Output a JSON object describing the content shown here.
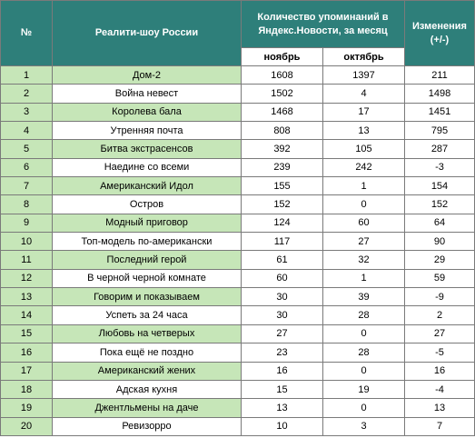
{
  "header": {
    "num": "№",
    "show": "Реалити-шоу России",
    "mentions": "Количество упоминаний в Яндекс.Новости, за месяц",
    "change": "Изменения (+/-)",
    "november": "ноябрь",
    "october": "октябрь"
  },
  "rows": [
    {
      "n": "1",
      "name": "Дом-2",
      "nov": "1608",
      "oct": "1397",
      "diff": "211"
    },
    {
      "n": "2",
      "name": "Война невест",
      "nov": "1502",
      "oct": "4",
      "diff": "1498"
    },
    {
      "n": "3",
      "name": "Королева бала",
      "nov": "1468",
      "oct": "17",
      "diff": "1451"
    },
    {
      "n": "4",
      "name": "Утренняя почта",
      "nov": "808",
      "oct": "13",
      "diff": "795"
    },
    {
      "n": "5",
      "name": "Битва экстрасенсов",
      "nov": "392",
      "oct": "105",
      "diff": "287"
    },
    {
      "n": "6",
      "name": "Наедине со всеми",
      "nov": "239",
      "oct": "242",
      "diff": "-3"
    },
    {
      "n": "7",
      "name": "Американский Идол",
      "nov": "155",
      "oct": "1",
      "diff": "154"
    },
    {
      "n": "8",
      "name": "Остров",
      "nov": "152",
      "oct": "0",
      "diff": "152"
    },
    {
      "n": "9",
      "name": "Модный приговор",
      "nov": "124",
      "oct": "60",
      "diff": "64"
    },
    {
      "n": "10",
      "name": "Топ-модель по-американски",
      "nov": "117",
      "oct": "27",
      "diff": "90"
    },
    {
      "n": "11",
      "name": "Последний герой",
      "nov": "61",
      "oct": "32",
      "diff": "29"
    },
    {
      "n": "12",
      "name": "В черной черной комнате",
      "nov": "60",
      "oct": "1",
      "diff": "59"
    },
    {
      "n": "13",
      "name": "Говорим и показываем",
      "nov": "30",
      "oct": "39",
      "diff": "-9"
    },
    {
      "n": "14",
      "name": "Успеть за 24 часа",
      "nov": "30",
      "oct": "28",
      "diff": "2"
    },
    {
      "n": "15",
      "name": "Любовь на четверых",
      "nov": "27",
      "oct": "0",
      "diff": "27"
    },
    {
      "n": "16",
      "name": "Пока ещё не поздно",
      "nov": "23",
      "oct": "28",
      "diff": "-5"
    },
    {
      "n": "17",
      "name": "Американский жених",
      "nov": "16",
      "oct": "0",
      "diff": "16"
    },
    {
      "n": "18",
      "name": "Адская кухня",
      "nov": "15",
      "oct": "19",
      "diff": "-4"
    },
    {
      "n": "19",
      "name": "Джентльмены на даче",
      "nov": "13",
      "oct": "0",
      "diff": "13"
    },
    {
      "n": "20",
      "name": "Ревизорро",
      "nov": "10",
      "oct": "3",
      "diff": "7"
    }
  ]
}
